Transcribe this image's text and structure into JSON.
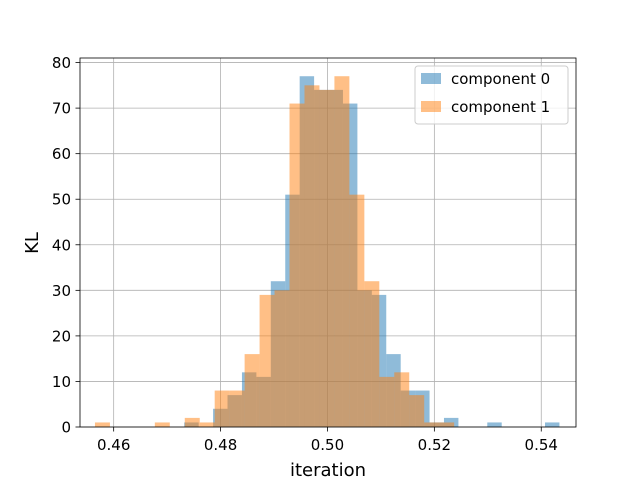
{
  "chart_data": {
    "type": "bar",
    "title": "",
    "xlabel": "iteration",
    "ylabel": "KL",
    "xlim": [
      0.4537,
      0.5465
    ],
    "ylim": [
      0,
      81
    ],
    "xticks": [
      0.46,
      0.48,
      0.5,
      0.52,
      0.54
    ],
    "yticks": [
      0,
      10,
      20,
      30,
      40,
      50,
      60,
      70,
      80
    ],
    "grid": true,
    "legend": "top-right",
    "series": [
      {
        "name": "component 0",
        "color": "#1f77b4",
        "opacity": 0.5,
        "bins": [
          {
            "x0": 0.4732,
            "x1": 0.4759,
            "count": 1
          },
          {
            "x0": 0.4786,
            "x1": 0.4813,
            "count": 4
          },
          {
            "x0": 0.4813,
            "x1": 0.484,
            "count": 7
          },
          {
            "x0": 0.484,
            "x1": 0.4867,
            "count": 12
          },
          {
            "x0": 0.4867,
            "x1": 0.4894,
            "count": 11
          },
          {
            "x0": 0.4894,
            "x1": 0.4921,
            "count": 32
          },
          {
            "x0": 0.4921,
            "x1": 0.4948,
            "count": 51
          },
          {
            "x0": 0.4948,
            "x1": 0.4975,
            "count": 77
          },
          {
            "x0": 0.4975,
            "x1": 0.5002,
            "count": 74
          },
          {
            "x0": 0.5002,
            "x1": 0.5029,
            "count": 74
          },
          {
            "x0": 0.5029,
            "x1": 0.5056,
            "count": 71
          },
          {
            "x0": 0.5056,
            "x1": 0.5083,
            "count": 30
          },
          {
            "x0": 0.5083,
            "x1": 0.511,
            "count": 29
          },
          {
            "x0": 0.511,
            "x1": 0.5137,
            "count": 16
          },
          {
            "x0": 0.5137,
            "x1": 0.5164,
            "count": 8
          },
          {
            "x0": 0.5164,
            "x1": 0.5191,
            "count": 8
          },
          {
            "x0": 0.5191,
            "x1": 0.5218,
            "count": 1
          },
          {
            "x0": 0.5218,
            "x1": 0.5245,
            "count": 2
          },
          {
            "x0": 0.5299,
            "x1": 0.5326,
            "count": 1
          },
          {
            "x0": 0.5407,
            "x1": 0.5434,
            "count": 1
          }
        ]
      },
      {
        "name": "component 1",
        "color": "#ff7f0e",
        "opacity": 0.5,
        "bins": [
          {
            "x0": 0.4565,
            "x1": 0.4593,
            "count": 1
          },
          {
            "x0": 0.4677,
            "x1": 0.4705,
            "count": 1
          },
          {
            "x0": 0.4733,
            "x1": 0.4761,
            "count": 2
          },
          {
            "x0": 0.4761,
            "x1": 0.4789,
            "count": 1
          },
          {
            "x0": 0.4789,
            "x1": 0.4817,
            "count": 8
          },
          {
            "x0": 0.4817,
            "x1": 0.4845,
            "count": 8
          },
          {
            "x0": 0.4845,
            "x1": 0.4873,
            "count": 16
          },
          {
            "x0": 0.4873,
            "x1": 0.4901,
            "count": 29
          },
          {
            "x0": 0.4901,
            "x1": 0.4929,
            "count": 30
          },
          {
            "x0": 0.4929,
            "x1": 0.4957,
            "count": 71
          },
          {
            "x0": 0.4957,
            "x1": 0.4985,
            "count": 75
          },
          {
            "x0": 0.4985,
            "x1": 0.5013,
            "count": 74
          },
          {
            "x0": 0.5013,
            "x1": 0.5041,
            "count": 77
          },
          {
            "x0": 0.5041,
            "x1": 0.5069,
            "count": 51
          },
          {
            "x0": 0.5069,
            "x1": 0.5097,
            "count": 32
          },
          {
            "x0": 0.5097,
            "x1": 0.5125,
            "count": 11
          },
          {
            "x0": 0.5125,
            "x1": 0.5153,
            "count": 12
          },
          {
            "x0": 0.5153,
            "x1": 0.5181,
            "count": 7
          },
          {
            "x0": 0.5181,
            "x1": 0.5209,
            "count": 1
          },
          {
            "x0": 0.5209,
            "x1": 0.5237,
            "count": 1
          }
        ]
      }
    ]
  }
}
